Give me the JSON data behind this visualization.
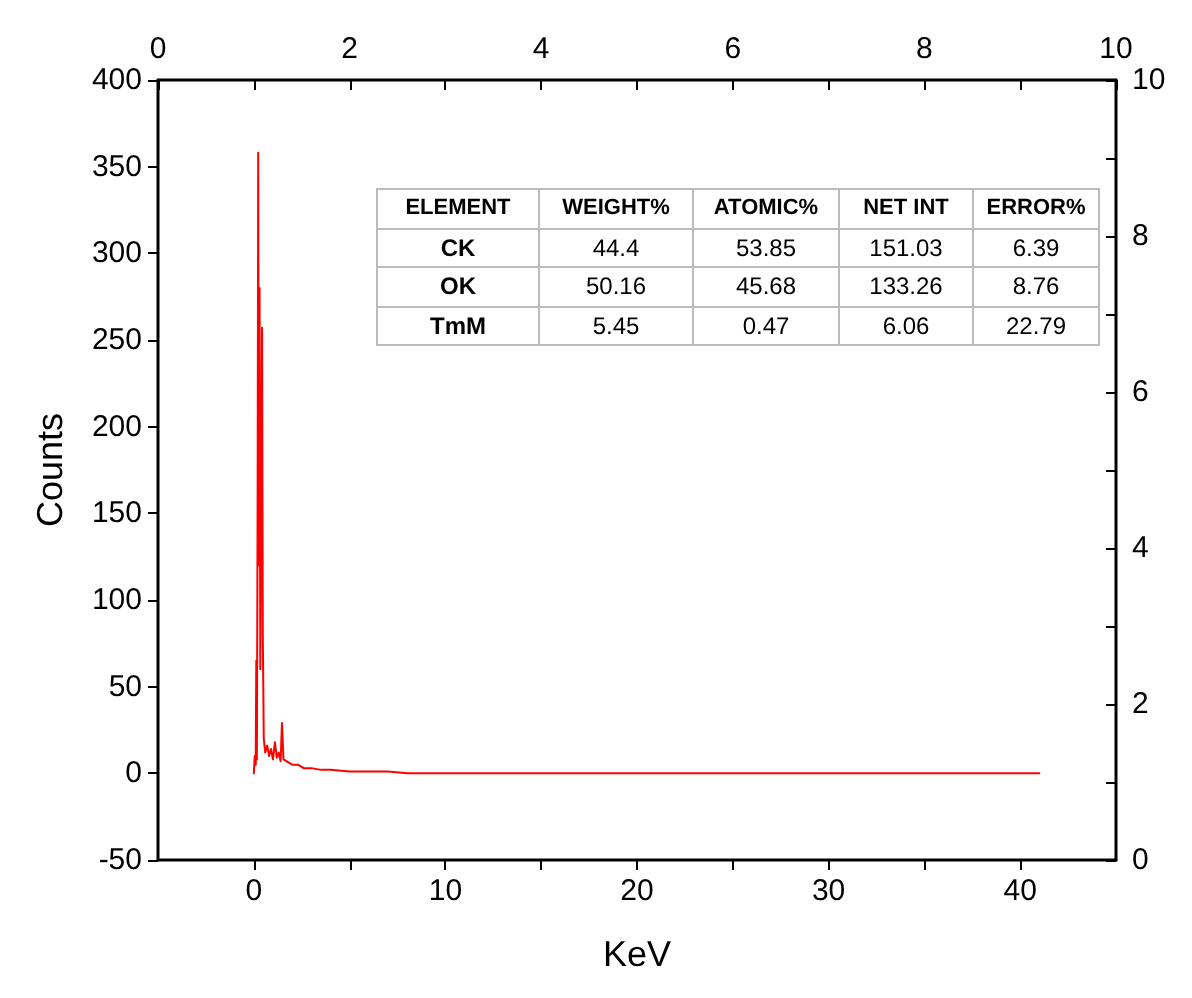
{
  "chart_data": {
    "type": "line",
    "xlabel": "KeV",
    "ylabel": "Counts",
    "x": [
      0,
      0.05,
      0.1,
      0.13,
      0.16,
      0.2,
      0.23,
      0.26,
      0.3,
      0.34,
      0.38,
      0.43,
      0.47,
      0.52,
      0.6,
      0.7,
      0.8,
      0.9,
      1.0,
      1.1,
      1.2,
      1.3,
      1.4,
      1.47,
      1.55,
      1.7,
      2.0,
      2.3,
      2.6,
      3.0,
      3.5,
      4.0,
      5.0,
      6.0,
      7.0,
      8.0,
      9.0,
      20,
      30,
      41
    ],
    "series": [
      {
        "color": "#ff0000",
        "values": [
          0,
          10,
          5,
          65,
          8,
          160,
          358,
          120,
          280,
          60,
          150,
          257,
          80,
          20,
          12,
          16,
          10,
          14,
          8,
          18,
          9,
          12,
          7,
          29,
          8,
          7,
          5,
          5,
          3,
          3,
          2,
          2,
          1,
          1,
          1,
          0,
          0,
          0,
          0,
          0
        ]
      }
    ],
    "xlim": [
      -5,
      45
    ],
    "xticks": [
      0,
      {
        "value": 5,
        "label": null
      },
      10,
      {
        "value": 15,
        "label": null
      },
      20,
      {
        "value": 25,
        "label": null
      },
      30,
      {
        "value": 35,
        "label": null
      },
      40
    ],
    "ylim": [
      -50,
      400
    ],
    "yticks": [
      -50,
      0,
      50,
      100,
      150,
      200,
      250,
      300,
      350,
      400
    ],
    "x2lim": [
      0,
      10
    ],
    "x2ticks": [
      0,
      {
        "value": 1,
        "label": null
      },
      2,
      {
        "value": 3,
        "label": null
      },
      4,
      {
        "value": 5,
        "label": null
      },
      6,
      {
        "value": 7,
        "label": null
      },
      8,
      {
        "value": 9,
        "label": null
      },
      10
    ],
    "y2lim": [
      0,
      10
    ],
    "y2ticks": [
      0,
      {
        "value": 1,
        "label": null
      },
      2,
      {
        "value": 3,
        "label": null
      },
      4,
      {
        "value": 5,
        "label": null
      },
      6,
      {
        "value": 7,
        "label": null
      },
      8,
      {
        "value": 9,
        "label": null
      },
      10
    ],
    "grid": false,
    "marker": "none",
    "line_style": "solid",
    "annotations": [
      "ELEMENT",
      "WEIGHT%",
      "ATOMIC%",
      "NET INT",
      "ERROR%",
      "CK",
      "44.4",
      "53.85",
      "151.03",
      "6.39",
      "OK",
      "50.16",
      "45.68",
      "133.26",
      "8.76",
      "TmM",
      "5.45",
      "0.47",
      "6.06",
      "22.79"
    ]
  }
}
